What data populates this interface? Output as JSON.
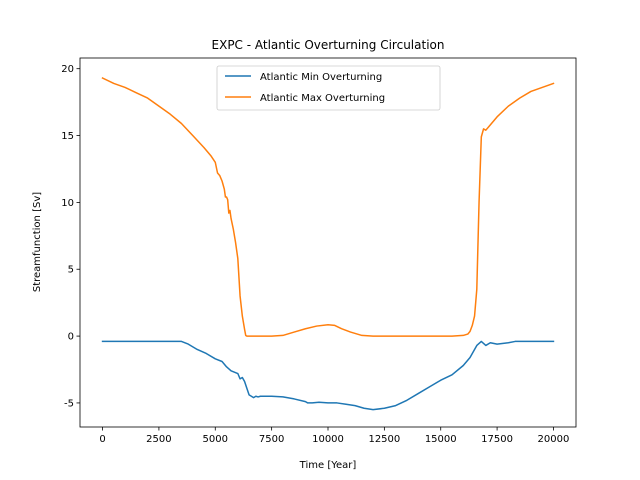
{
  "chart_data": {
    "type": "line",
    "title": "EXPC - Atlantic Overturning Circulation",
    "xlabel": "Time [Year]",
    "ylabel": "Streamfunction [Sv]",
    "xlim": [
      -1000,
      21000
    ],
    "ylim": [
      -6.8,
      20.8
    ],
    "xticks": [
      0,
      2500,
      5000,
      7500,
      10000,
      12500,
      15000,
      17500,
      20000
    ],
    "yticks": [
      -5,
      0,
      5,
      10,
      15,
      20
    ],
    "grid": false,
    "legend_position": "upper center",
    "series": [
      {
        "name": "Atlantic Min Overturning",
        "color": "#1f77b4",
        "x": [
          0,
          1000,
          2000,
          3000,
          3500,
          3800,
          4200,
          4600,
          5000,
          5300,
          5500,
          5700,
          6000,
          6100,
          6200,
          6300,
          6400,
          6500,
          6600,
          6700,
          6800,
          6900,
          7000,
          7500,
          8000,
          8500,
          9000,
          9100,
          9300,
          9600,
          10000,
          10400,
          10800,
          11200,
          11600,
          12000,
          12500,
          13000,
          13500,
          14000,
          14500,
          15000,
          15500,
          16000,
          16300,
          16600,
          16800,
          17000,
          17200,
          17500,
          18000,
          18300,
          19000,
          20000
        ],
        "y": [
          -0.4,
          -0.4,
          -0.4,
          -0.4,
          -0.4,
          -0.6,
          -1.0,
          -1.3,
          -1.7,
          -1.9,
          -2.3,
          -2.6,
          -2.8,
          -3.2,
          -3.1,
          -3.4,
          -3.9,
          -4.4,
          -4.5,
          -4.6,
          -4.5,
          -4.55,
          -4.5,
          -4.5,
          -4.55,
          -4.7,
          -4.9,
          -5.0,
          -5.0,
          -4.95,
          -5.0,
          -5.0,
          -5.1,
          -5.2,
          -5.4,
          -5.5,
          -5.4,
          -5.2,
          -4.8,
          -4.3,
          -3.8,
          -3.3,
          -2.9,
          -2.2,
          -1.6,
          -0.7,
          -0.4,
          -0.7,
          -0.5,
          -0.6,
          -0.5,
          -0.4,
          -0.4,
          -0.4
        ]
      },
      {
        "name": "Atlantic Max Overturning",
        "color": "#ff7f0e",
        "x": [
          0,
          500,
          1000,
          1500,
          2000,
          2500,
          3000,
          3500,
          4000,
          4500,
          4800,
          5000,
          5100,
          5200,
          5300,
          5400,
          5450,
          5500,
          5550,
          5600,
          5650,
          5700,
          5800,
          5900,
          6000,
          6100,
          6200,
          6300,
          6350,
          6400,
          7000,
          7500,
          8000,
          8500,
          9000,
          9500,
          10000,
          10300,
          10600,
          11000,
          11500,
          12000,
          13000,
          14000,
          15000,
          15500,
          16000,
          16200,
          16300,
          16400,
          16500,
          16600,
          16700,
          16800,
          16900,
          17000,
          17200,
          17500,
          18000,
          18500,
          19000,
          19500,
          20000
        ],
        "y": [
          19.3,
          18.9,
          18.6,
          18.2,
          17.8,
          17.2,
          16.6,
          15.9,
          15.0,
          14.1,
          13.5,
          13.0,
          12.2,
          12.0,
          11.6,
          11.0,
          10.4,
          10.4,
          10.2,
          9.2,
          9.4,
          8.8,
          8.0,
          7.0,
          5.8,
          3.0,
          1.5,
          0.5,
          0.05,
          0.0,
          0.0,
          0.0,
          0.05,
          0.3,
          0.55,
          0.75,
          0.85,
          0.8,
          0.55,
          0.3,
          0.05,
          0.0,
          0.0,
          0.0,
          0.0,
          0.0,
          0.05,
          0.15,
          0.35,
          0.8,
          1.5,
          3.5,
          10.0,
          14.9,
          15.5,
          15.4,
          15.8,
          16.4,
          17.2,
          17.8,
          18.3,
          18.6,
          18.9
        ]
      }
    ]
  }
}
